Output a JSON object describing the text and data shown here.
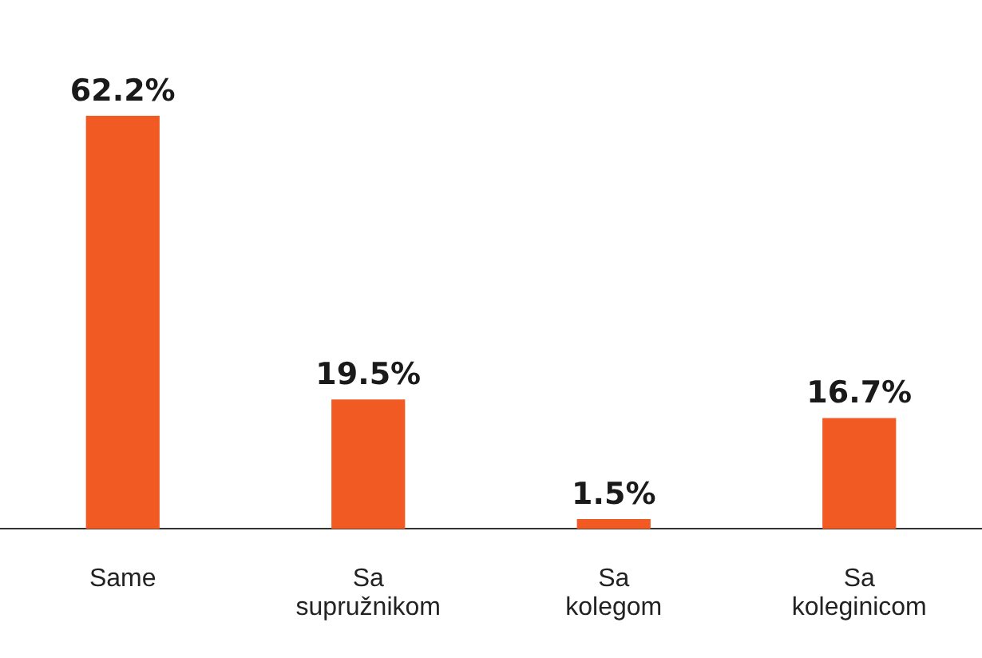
{
  "chart_data": {
    "type": "bar",
    "categories": [
      "Same",
      "Sa supružnikom",
      "Sa kolegom",
      "Sa koleginicom"
    ],
    "values": [
      62.2,
      19.5,
      1.5,
      16.7
    ],
    "color": "#f15a22",
    "value_labels": [
      "62.2%",
      "19.5%",
      "1.5%",
      "16.7%"
    ],
    "grid": false,
    "legend": false
  }
}
